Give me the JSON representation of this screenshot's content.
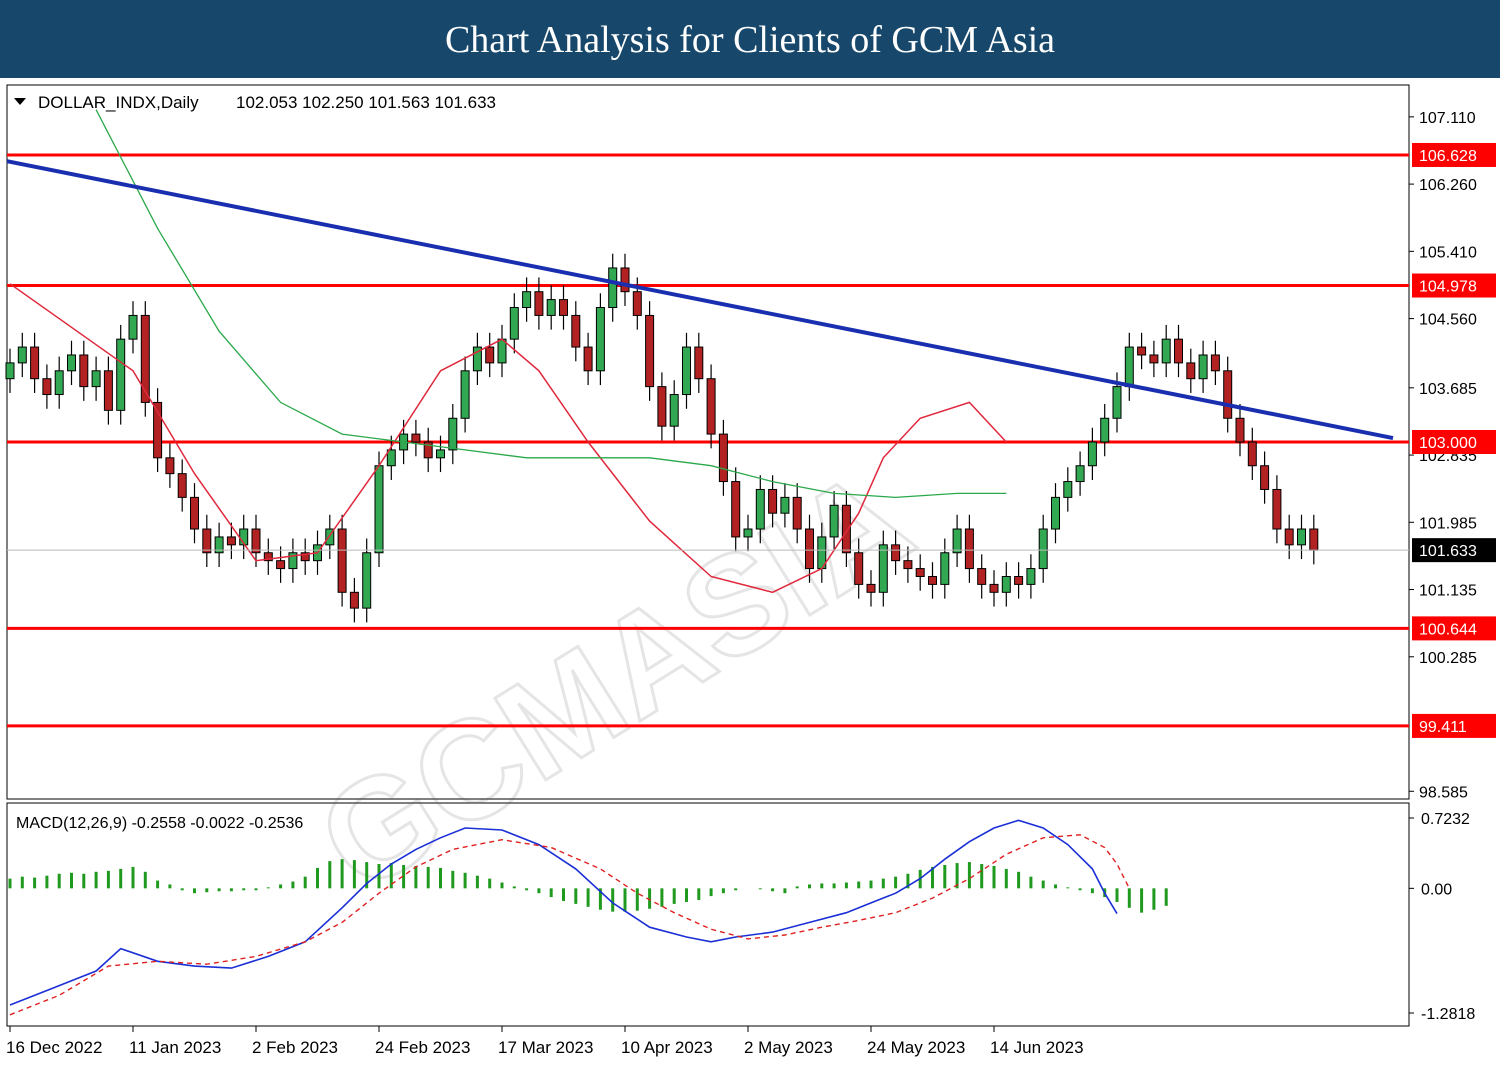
{
  "header": {
    "title": "Chart Analysis for Clients of GCM Asia"
  },
  "chart_data": [
    {
      "type": "candlestick",
      "symbol_label": "DOLLAR_INDX,Daily",
      "ohlc_label": "102.053 102.250 101.563 101.633",
      "y_ticks": [
        "107.110",
        "106.260",
        "105.410",
        "104.560",
        "103.685",
        "102.835",
        "101.985",
        "101.135",
        "100.285",
        "98.585"
      ],
      "ylim": [
        98.5,
        107.5
      ],
      "current_price": "101.633",
      "horizontal_levels": [
        {
          "value": 106.628,
          "label": "106.628"
        },
        {
          "value": 104.978,
          "label": "104.978"
        },
        {
          "value": 103.0,
          "label": "103.000"
        },
        {
          "value": 100.644,
          "label": "100.644"
        },
        {
          "value": 99.411,
          "label": "99.411"
        }
      ],
      "trendline": [
        [
          0,
          106.55
        ],
        [
          91,
          103.05
        ]
      ],
      "x_labels": [
        {
          "index": 0,
          "label": "16 Dec 2022"
        },
        {
          "index": 10,
          "label": "11 Jan 2023"
        },
        {
          "index": 20,
          "label": "2 Feb 2023"
        },
        {
          "index": 30,
          "label": "24 Feb 2023"
        },
        {
          "index": 40,
          "label": "17 Mar 2023"
        },
        {
          "index": 50,
          "label": "10 Apr 2023"
        },
        {
          "index": 60,
          "label": "2 May 2023"
        },
        {
          "index": 70,
          "label": "24 May 2023"
        },
        {
          "index": 80,
          "label": "14 Jun 2023"
        }
      ],
      "closes": [
        104.0,
        104.2,
        103.8,
        103.6,
        103.9,
        104.1,
        103.7,
        103.9,
        103.4,
        104.3,
        104.6,
        103.5,
        102.8,
        102.6,
        102.3,
        101.9,
        101.6,
        101.8,
        101.7,
        101.9,
        101.6,
        101.5,
        101.4,
        101.6,
        101.5,
        101.7,
        101.9,
        101.1,
        100.9,
        101.6,
        102.7,
        102.9,
        103.1,
        103.0,
        102.8,
        102.9,
        103.3,
        103.9,
        104.2,
        104.0,
        104.3,
        104.7,
        104.9,
        104.6,
        104.8,
        104.6,
        104.2,
        103.9,
        104.7,
        105.2,
        104.9,
        104.6,
        103.7,
        103.2,
        103.6,
        104.2,
        103.8,
        103.1,
        102.5,
        101.8,
        101.9,
        102.4,
        102.1,
        102.3,
        101.9,
        101.4,
        101.8,
        102.2,
        101.6,
        101.2,
        101.1,
        101.7,
        101.5,
        101.4,
        101.3,
        101.2,
        101.6,
        101.9,
        101.4,
        101.2,
        101.1,
        101.3,
        101.2,
        101.4,
        101.9,
        102.3,
        102.5,
        102.7,
        103.0,
        103.3,
        103.7,
        104.2,
        104.1,
        104.0,
        104.3,
        104.0,
        103.8,
        104.1,
        103.9,
        103.3,
        103.0,
        102.7,
        102.4,
        101.9,
        101.7,
        101.9,
        101.633
      ],
      "ma_red": [
        [
          0,
          105.0
        ],
        [
          10,
          103.9
        ],
        [
          15,
          102.6
        ],
        [
          20,
          101.5
        ],
        [
          25,
          101.6
        ],
        [
          30,
          102.7
        ],
        [
          35,
          103.9
        ],
        [
          40,
          104.3
        ],
        [
          43,
          103.9
        ],
        [
          47,
          103.0
        ],
        [
          52,
          102.0
        ],
        [
          57,
          101.3
        ],
        [
          62,
          101.1
        ],
        [
          66,
          101.4
        ],
        [
          69,
          102.1
        ],
        [
          71,
          102.8
        ],
        [
          74,
          103.3
        ],
        [
          78,
          103.5
        ],
        [
          81,
          103.0
        ]
      ],
      "ma_green": [
        [
          7,
          107.2
        ],
        [
          12,
          105.7
        ],
        [
          17,
          104.4
        ],
        [
          22,
          103.5
        ],
        [
          27,
          103.1
        ],
        [
          32,
          103.0
        ],
        [
          37,
          102.9
        ],
        [
          42,
          102.8
        ],
        [
          47,
          102.8
        ],
        [
          52,
          102.8
        ],
        [
          57,
          102.7
        ],
        [
          62,
          102.5
        ],
        [
          67,
          102.35
        ],
        [
          72,
          102.3
        ],
        [
          77,
          102.35
        ],
        [
          81,
          102.35
        ]
      ]
    },
    {
      "type": "macd",
      "label": "MACD(12,26,9) -0.2558 -0.0022 -0.2536",
      "y_ticks": [
        "0.7232",
        "0.00",
        "-1.2818"
      ],
      "ylim": [
        -1.2818,
        0.7232
      ],
      "histogram": [
        0.1,
        0.12,
        0.11,
        0.13,
        0.15,
        0.16,
        0.15,
        0.17,
        0.18,
        0.2,
        0.22,
        0.17,
        0.08,
        0.04,
        -0.02,
        -0.05,
        -0.04,
        -0.03,
        -0.03,
        -0.02,
        -0.02,
        0.01,
        0.04,
        0.07,
        0.12,
        0.21,
        0.28,
        0.3,
        0.29,
        0.27,
        0.25,
        0.26,
        0.24,
        0.23,
        0.22,
        0.21,
        0.18,
        0.16,
        0.13,
        0.1,
        0.06,
        0.02,
        -0.02,
        -0.05,
        -0.09,
        -0.13,
        -0.16,
        -0.19,
        -0.22,
        -0.24,
        -0.24,
        -0.23,
        -0.21,
        -0.19,
        -0.16,
        -0.14,
        -0.12,
        -0.08,
        -0.05,
        -0.02,
        0.0,
        -0.01,
        -0.03,
        -0.05,
        0.02,
        0.04,
        0.05,
        0.05,
        0.06,
        0.07,
        0.08,
        0.1,
        0.12,
        0.15,
        0.19,
        0.22,
        0.24,
        0.26,
        0.27,
        0.25,
        0.23,
        0.2,
        0.17,
        0.12,
        0.08,
        0.04,
        0.01,
        -0.02,
        -0.05,
        -0.09,
        -0.14,
        -0.2,
        -0.25,
        -0.22,
        -0.18
      ],
      "macd_line": [
        [
          0,
          -1.2
        ],
        [
          3,
          -1.05
        ],
        [
          5,
          -0.95
        ],
        [
          7,
          -0.85
        ],
        [
          9,
          -0.62
        ],
        [
          12,
          -0.75
        ],
        [
          15,
          -0.8
        ],
        [
          18,
          -0.82
        ],
        [
          21,
          -0.7
        ],
        [
          24,
          -0.55
        ],
        [
          27,
          -0.2
        ],
        [
          29,
          0.05
        ],
        [
          31,
          0.25
        ],
        [
          33,
          0.4
        ],
        [
          35,
          0.52
        ],
        [
          37,
          0.62
        ],
        [
          40,
          0.6
        ],
        [
          43,
          0.45
        ],
        [
          46,
          0.2
        ],
        [
          49,
          -0.15
        ],
        [
          52,
          -0.4
        ],
        [
          55,
          -0.5
        ],
        [
          57,
          -0.55
        ],
        [
          59,
          -0.5
        ],
        [
          62,
          -0.45
        ],
        [
          65,
          -0.35
        ],
        [
          68,
          -0.25
        ],
        [
          70,
          -0.15
        ],
        [
          72,
          -0.05
        ],
        [
          74,
          0.1
        ],
        [
          76,
          0.3
        ],
        [
          78,
          0.48
        ],
        [
          80,
          0.62
        ],
        [
          82,
          0.7
        ],
        [
          84,
          0.62
        ],
        [
          86,
          0.45
        ],
        [
          88,
          0.2
        ],
        [
          89,
          -0.05
        ],
        [
          90,
          -0.26
        ]
      ],
      "signal_line": [
        [
          0,
          -1.3
        ],
        [
          4,
          -1.1
        ],
        [
          8,
          -0.8
        ],
        [
          12,
          -0.75
        ],
        [
          16,
          -0.78
        ],
        [
          20,
          -0.7
        ],
        [
          24,
          -0.55
        ],
        [
          27,
          -0.35
        ],
        [
          30,
          -0.05
        ],
        [
          33,
          0.22
        ],
        [
          36,
          0.4
        ],
        [
          40,
          0.5
        ],
        [
          44,
          0.42
        ],
        [
          48,
          0.2
        ],
        [
          51,
          -0.05
        ],
        [
          54,
          -0.25
        ],
        [
          57,
          -0.42
        ],
        [
          60,
          -0.52
        ],
        [
          63,
          -0.48
        ],
        [
          66,
          -0.4
        ],
        [
          69,
          -0.33
        ],
        [
          72,
          -0.25
        ],
        [
          75,
          -0.1
        ],
        [
          78,
          0.1
        ],
        [
          81,
          0.35
        ],
        [
          84,
          0.52
        ],
        [
          87,
          0.55
        ],
        [
          89,
          0.42
        ],
        [
          90,
          0.25
        ],
        [
          91,
          0.0
        ]
      ]
    }
  ]
}
